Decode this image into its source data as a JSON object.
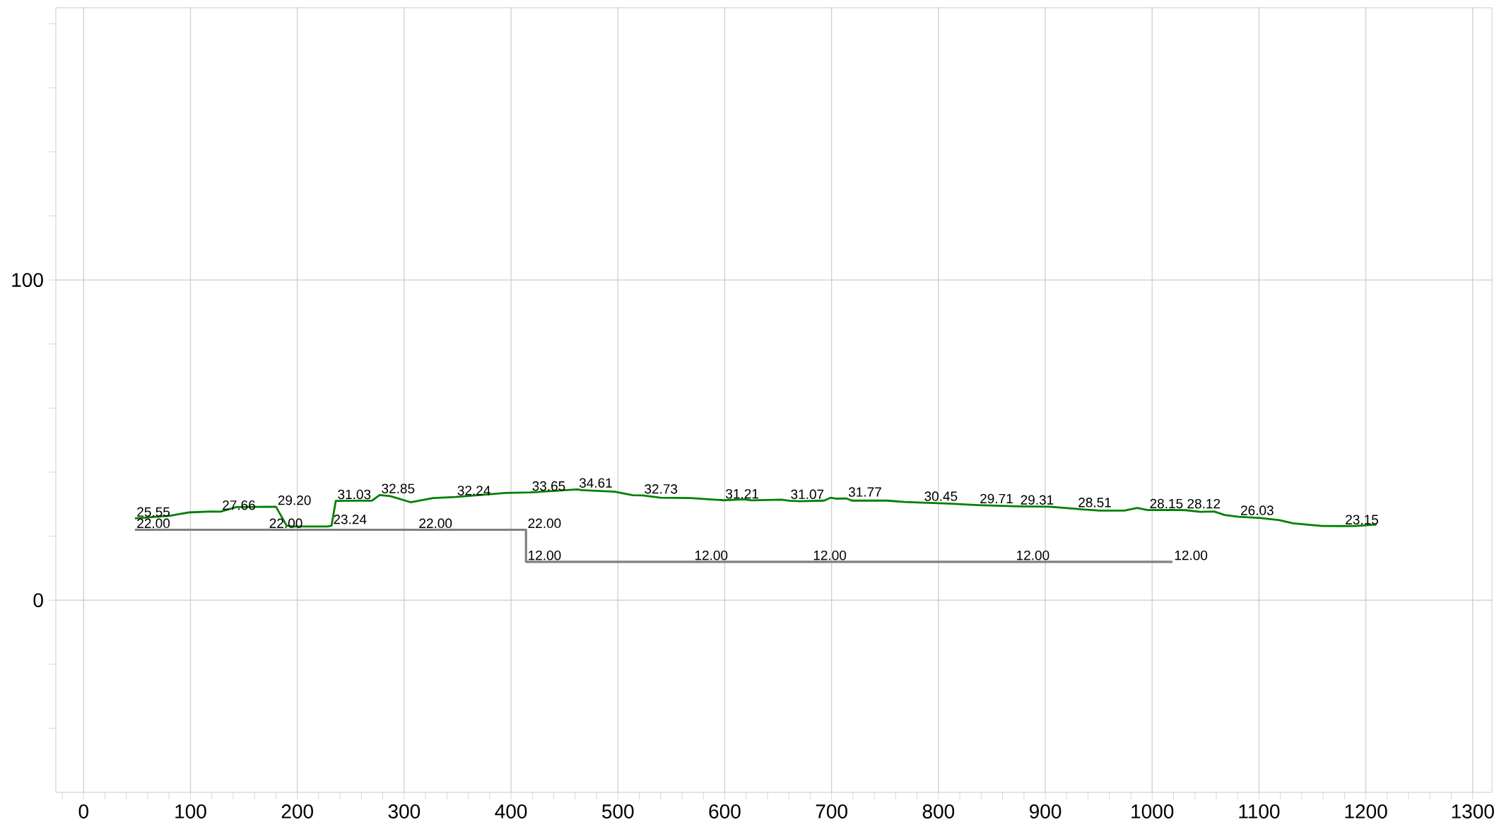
{
  "chart_data": {
    "type": "line",
    "xlim": [
      -26,
      1318
    ],
    "ylim": [
      -60,
      185
    ],
    "grid": true,
    "marker": "none",
    "xticks": [
      0,
      100,
      200,
      300,
      400,
      500,
      600,
      700,
      800,
      900,
      1000,
      1100,
      1200,
      1300,
      {
        "value": -20,
        "label": null
      },
      {
        "value": 20,
        "label": null
      },
      {
        "value": 40,
        "label": null
      },
      {
        "value": 60,
        "label": null
      },
      {
        "value": 80,
        "label": null
      },
      {
        "value": 120,
        "label": null
      },
      {
        "value": 140,
        "label": null
      },
      {
        "value": 160,
        "label": null
      },
      {
        "value": 180,
        "label": null
      },
      {
        "value": 220,
        "label": null
      },
      {
        "value": 240,
        "label": null
      },
      {
        "value": 260,
        "label": null
      },
      {
        "value": 280,
        "label": null
      },
      {
        "value": 320,
        "label": null
      },
      {
        "value": 340,
        "label": null
      },
      {
        "value": 360,
        "label": null
      },
      {
        "value": 380,
        "label": null
      },
      {
        "value": 420,
        "label": null
      },
      {
        "value": 440,
        "label": null
      },
      {
        "value": 460,
        "label": null
      },
      {
        "value": 480,
        "label": null
      },
      {
        "value": 520,
        "label": null
      },
      {
        "value": 540,
        "label": null
      },
      {
        "value": 560,
        "label": null
      },
      {
        "value": 580,
        "label": null
      },
      {
        "value": 620,
        "label": null
      },
      {
        "value": 640,
        "label": null
      },
      {
        "value": 660,
        "label": null
      },
      {
        "value": 680,
        "label": null
      },
      {
        "value": 720,
        "label": null
      },
      {
        "value": 740,
        "label": null
      },
      {
        "value": 760,
        "label": null
      },
      {
        "value": 780,
        "label": null
      },
      {
        "value": 820,
        "label": null
      },
      {
        "value": 840,
        "label": null
      },
      {
        "value": 860,
        "label": null
      },
      {
        "value": 880,
        "label": null
      },
      {
        "value": 920,
        "label": null
      },
      {
        "value": 940,
        "label": null
      },
      {
        "value": 960,
        "label": null
      },
      {
        "value": 980,
        "label": null
      },
      {
        "value": 1020,
        "label": null
      },
      {
        "value": 1040,
        "label": null
      },
      {
        "value": 1060,
        "label": null
      },
      {
        "value": 1080,
        "label": null
      },
      {
        "value": 1120,
        "label": null
      },
      {
        "value": 1140,
        "label": null
      },
      {
        "value": 1160,
        "label": null
      },
      {
        "value": 1180,
        "label": null
      },
      {
        "value": 1220,
        "label": null
      },
      {
        "value": 1240,
        "label": null
      },
      {
        "value": 1260,
        "label": null
      },
      {
        "value": 1280,
        "label": null
      }
    ],
    "yticks": [
      0,
      100,
      {
        "value": -40,
        "label": null
      },
      {
        "value": -20,
        "label": null
      },
      {
        "value": 20,
        "label": null
      },
      {
        "value": 40,
        "label": null
      },
      {
        "value": 60,
        "label": null
      },
      {
        "value": 80,
        "label": null
      },
      {
        "value": 120,
        "label": null
      },
      {
        "value": 140,
        "label": null
      },
      {
        "value": 160,
        "label": null
      },
      {
        "value": 180,
        "label": null
      }
    ],
    "series": [
      {
        "color": "#008000",
        "x": [
          48,
          81,
          98,
          119,
          128,
          143,
          180,
          190,
          196,
          228,
          232,
          236,
          270,
          277,
          287,
          306,
          327,
          348,
          395,
          418,
          462,
          466,
          497,
          514,
          523,
          540,
          568,
          599,
          618,
          625,
          653,
          660,
          670,
          693,
          699,
          705,
          714,
          719,
          752,
          768,
          785,
          809,
          837,
          875,
          904,
          929,
          951,
          974,
          986,
          996,
          1019,
          1031,
          1045,
          1058,
          1068,
          1081,
          1100,
          1119,
          1132,
          1159,
          1179,
          1190,
          1210
        ],
        "values": [
          25.55,
          26.4,
          27.4,
          27.7,
          27.66,
          29.1,
          29.2,
          23.3,
          23.0,
          23.0,
          23.24,
          31.03,
          31.1,
          32.85,
          32.5,
          30.6,
          31.9,
          32.24,
          33.5,
          33.65,
          34.61,
          34.4,
          33.9,
          32.8,
          32.73,
          32.0,
          31.9,
          31.21,
          31.5,
          31.2,
          31.4,
          31.07,
          30.9,
          31.1,
          32.0,
          31.7,
          31.77,
          31.1,
          31.1,
          30.7,
          30.45,
          30.2,
          29.71,
          29.31,
          29.2,
          28.51,
          28.0,
          28.0,
          28.8,
          28.15,
          28.2,
          28.12,
          27.6,
          27.7,
          26.6,
          26.03,
          25.7,
          25.0,
          24.0,
          23.2,
          23.15,
          23.2,
          23.6
        ],
        "value_labels": [
          "25.55",
          null,
          null,
          null,
          "27.66",
          null,
          "29.20",
          null,
          null,
          null,
          "23.24",
          "31.03",
          null,
          "32.85",
          null,
          null,
          null,
          "32.24",
          null,
          "33.65",
          "34.61",
          null,
          null,
          null,
          "32.73",
          null,
          null,
          "31.21",
          null,
          null,
          null,
          "31.07",
          null,
          null,
          null,
          null,
          "31.77",
          null,
          null,
          null,
          "30.45",
          null,
          "29.71",
          "29.31",
          null,
          "28.51",
          null,
          null,
          null,
          "28.15",
          null,
          "28.12",
          null,
          null,
          null,
          "26.03",
          null,
          null,
          null,
          null,
          "23.15",
          null,
          null
        ]
      },
      {
        "color": "#808080",
        "x": [
          48,
          172,
          312,
          414,
          414,
          570,
          681,
          871,
          1019
        ],
        "values": [
          22,
          22,
          22,
          22,
          12,
          12,
          12,
          12,
          12
        ],
        "value_labels": [
          "22.00",
          "22.00",
          "22.00",
          "22.00",
          "12.00",
          "12.00",
          "12.00",
          "12.00",
          "12.00"
        ]
      }
    ]
  }
}
